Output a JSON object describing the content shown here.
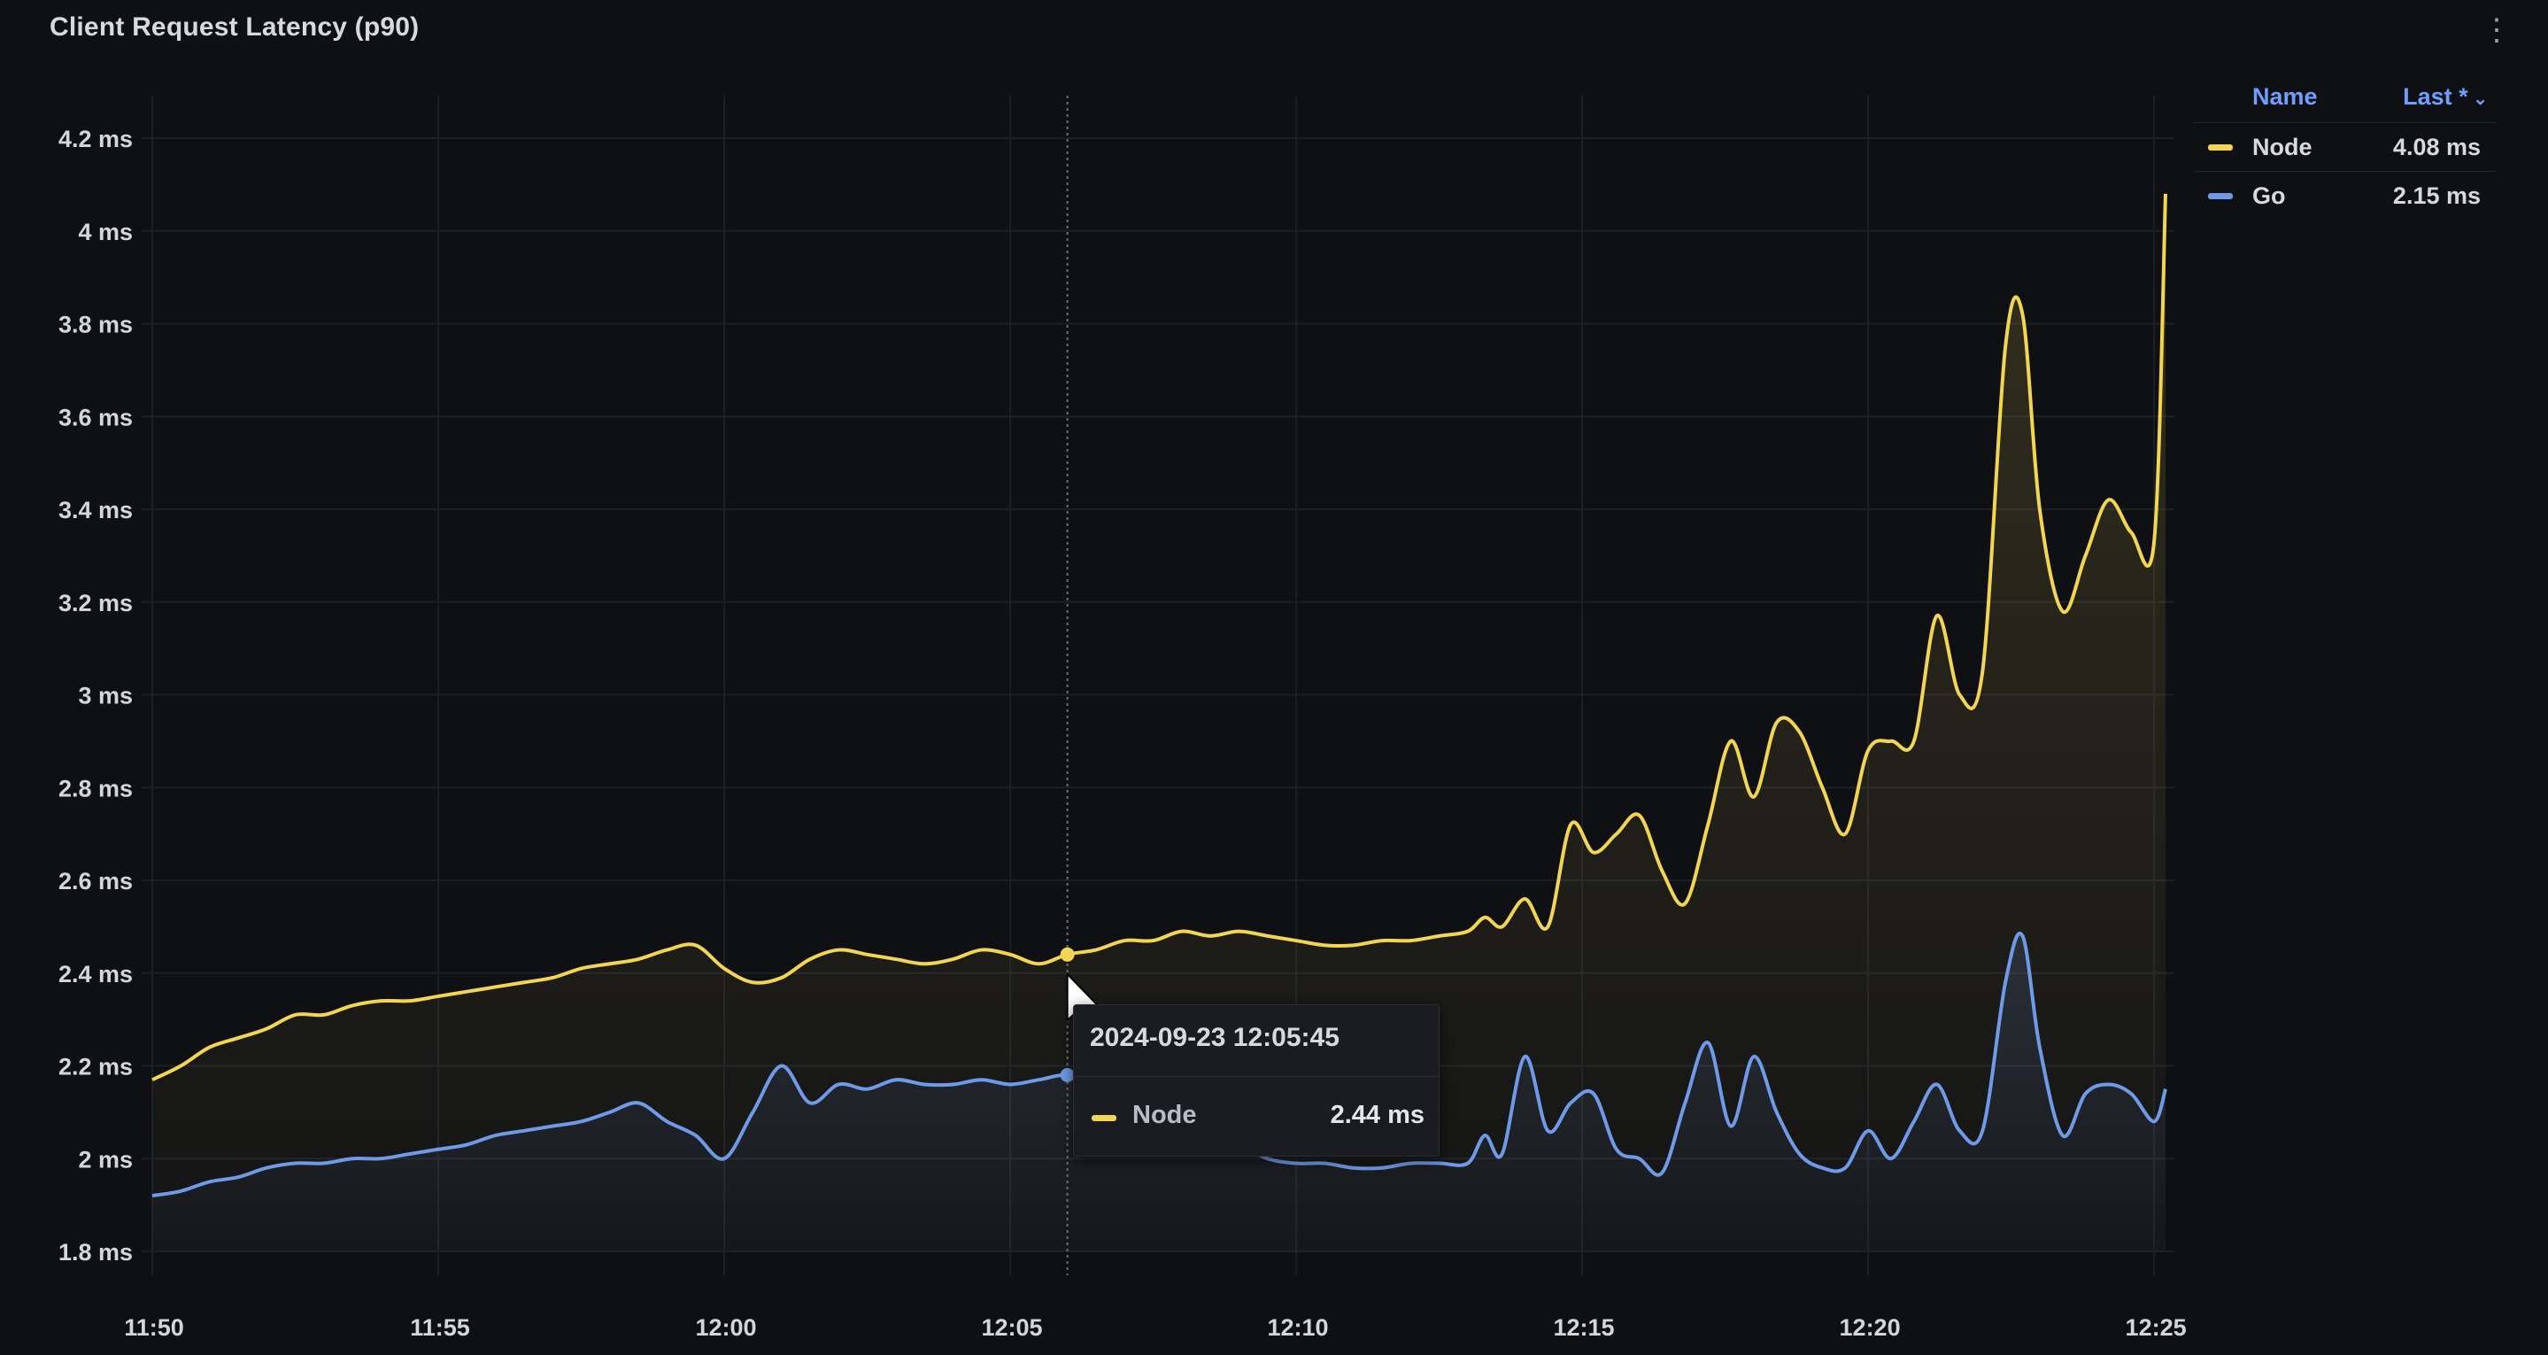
{
  "panel": {
    "title": "Client Request Latency (p90)",
    "menu_icon": "kebab-menu-icon"
  },
  "legend": {
    "name_header": "Name",
    "last_header": "Last *",
    "sort_icon": "chevron-down-icon",
    "rows": [
      {
        "name": "Node",
        "value": "4.08 ms",
        "color": "#f2d552"
      },
      {
        "name": "Go",
        "value": "2.15 ms",
        "color": "#6f9ae8"
      }
    ]
  },
  "tooltip": {
    "time": "2024-09-23 12:05:45",
    "series": "Node",
    "value": "2.44 ms",
    "color": "#f2d552"
  },
  "chart_data": {
    "type": "line",
    "title": "Client Request Latency (p90)",
    "x_ticks": [
      "11:50",
      "11:55",
      "12:00",
      "12:05",
      "12:10",
      "12:15",
      "12:20",
      "12:25"
    ],
    "y_ticks": [
      "4.2 ms",
      "4 ms",
      "3.8 ms",
      "3.6 ms",
      "3.4 ms",
      "3.2 ms",
      "3 ms",
      "2.8 ms",
      "2.6 ms",
      "2.4 ms",
      "2.2 ms",
      "2 ms",
      "1.8 ms"
    ],
    "ylim": [
      1.8,
      4.2
    ],
    "xlim": [
      0,
      35.2
    ],
    "grid": true,
    "legend_position": "top-right",
    "hover_x": 16.0,
    "series": [
      {
        "name": "Node",
        "color": "#f2d552",
        "points": [
          [
            0,
            2.17
          ],
          [
            0.5,
            2.2
          ],
          [
            1,
            2.24
          ],
          [
            1.5,
            2.26
          ],
          [
            2,
            2.28
          ],
          [
            2.5,
            2.31
          ],
          [
            3,
            2.31
          ],
          [
            3.5,
            2.33
          ],
          [
            4,
            2.34
          ],
          [
            4.5,
            2.34
          ],
          [
            5,
            2.35
          ],
          [
            5.5,
            2.36
          ],
          [
            6,
            2.37
          ],
          [
            6.5,
            2.38
          ],
          [
            7,
            2.39
          ],
          [
            7.5,
            2.41
          ],
          [
            8,
            2.42
          ],
          [
            8.5,
            2.43
          ],
          [
            9,
            2.45
          ],
          [
            9.5,
            2.46
          ],
          [
            10,
            2.41
          ],
          [
            10.5,
            2.38
          ],
          [
            11,
            2.39
          ],
          [
            11.5,
            2.43
          ],
          [
            12,
            2.45
          ],
          [
            12.5,
            2.44
          ],
          [
            13,
            2.43
          ],
          [
            13.5,
            2.42
          ],
          [
            14,
            2.43
          ],
          [
            14.5,
            2.45
          ],
          [
            15,
            2.44
          ],
          [
            15.5,
            2.42
          ],
          [
            16,
            2.44
          ],
          [
            16.5,
            2.45
          ],
          [
            17,
            2.47
          ],
          [
            17.5,
            2.47
          ],
          [
            18,
            2.49
          ],
          [
            18.5,
            2.48
          ],
          [
            19,
            2.49
          ],
          [
            19.5,
            2.48
          ],
          [
            20,
            2.47
          ],
          [
            20.5,
            2.46
          ],
          [
            21,
            2.46
          ],
          [
            21.5,
            2.47
          ],
          [
            22,
            2.47
          ],
          [
            22.5,
            2.48
          ],
          [
            23,
            2.49
          ],
          [
            23.3,
            2.52
          ],
          [
            23.6,
            2.5
          ],
          [
            24,
            2.56
          ],
          [
            24.4,
            2.5
          ],
          [
            24.8,
            2.72
          ],
          [
            25.2,
            2.66
          ],
          [
            25.6,
            2.7
          ],
          [
            26,
            2.74
          ],
          [
            26.4,
            2.62
          ],
          [
            26.8,
            2.55
          ],
          [
            27.2,
            2.72
          ],
          [
            27.6,
            2.9
          ],
          [
            28,
            2.78
          ],
          [
            28.4,
            2.94
          ],
          [
            28.8,
            2.92
          ],
          [
            29.2,
            2.8
          ],
          [
            29.6,
            2.7
          ],
          [
            30,
            2.88
          ],
          [
            30.4,
            2.9
          ],
          [
            30.8,
            2.9
          ],
          [
            31.2,
            3.17
          ],
          [
            31.6,
            3.0
          ],
          [
            32,
            3.05
          ],
          [
            32.4,
            3.75
          ],
          [
            32.7,
            3.82
          ],
          [
            33,
            3.4
          ],
          [
            33.4,
            3.18
          ],
          [
            33.8,
            3.3
          ],
          [
            34.2,
            3.42
          ],
          [
            34.6,
            3.35
          ],
          [
            35,
            3.33
          ],
          [
            35.2,
            4.08
          ]
        ]
      },
      {
        "name": "Go",
        "color": "#6f9ae8",
        "points": [
          [
            0,
            1.92
          ],
          [
            0.5,
            1.93
          ],
          [
            1,
            1.95
          ],
          [
            1.5,
            1.96
          ],
          [
            2,
            1.98
          ],
          [
            2.5,
            1.99
          ],
          [
            3,
            1.99
          ],
          [
            3.5,
            2.0
          ],
          [
            4,
            2.0
          ],
          [
            4.5,
            2.01
          ],
          [
            5,
            2.02
          ],
          [
            5.5,
            2.03
          ],
          [
            6,
            2.05
          ],
          [
            6.5,
            2.06
          ],
          [
            7,
            2.07
          ],
          [
            7.5,
            2.08
          ],
          [
            8,
            2.1
          ],
          [
            8.5,
            2.12
          ],
          [
            9,
            2.08
          ],
          [
            9.5,
            2.05
          ],
          [
            10,
            2.0
          ],
          [
            10.5,
            2.1
          ],
          [
            11,
            2.2
          ],
          [
            11.5,
            2.12
          ],
          [
            12,
            2.16
          ],
          [
            12.5,
            2.15
          ],
          [
            13,
            2.17
          ],
          [
            13.5,
            2.16
          ],
          [
            14,
            2.16
          ],
          [
            14.5,
            2.17
          ],
          [
            15,
            2.16
          ],
          [
            15.5,
            2.17
          ],
          [
            16,
            2.18
          ],
          [
            16.5,
            2.16
          ],
          [
            17,
            2.12
          ],
          [
            17.5,
            2.08
          ],
          [
            18,
            2.06
          ],
          [
            18.5,
            2.04
          ],
          [
            19,
            2.03
          ],
          [
            19.5,
            2.0
          ],
          [
            20,
            1.99
          ],
          [
            20.5,
            1.99
          ],
          [
            21,
            1.98
          ],
          [
            21.5,
            1.98
          ],
          [
            22,
            1.99
          ],
          [
            22.5,
            1.99
          ],
          [
            23,
            1.99
          ],
          [
            23.3,
            2.05
          ],
          [
            23.6,
            2.01
          ],
          [
            24,
            2.22
          ],
          [
            24.4,
            2.06
          ],
          [
            24.8,
            2.12
          ],
          [
            25.2,
            2.14
          ],
          [
            25.6,
            2.02
          ],
          [
            26,
            2.0
          ],
          [
            26.4,
            1.97
          ],
          [
            26.8,
            2.12
          ],
          [
            27.2,
            2.25
          ],
          [
            27.6,
            2.07
          ],
          [
            28,
            2.22
          ],
          [
            28.4,
            2.1
          ],
          [
            28.8,
            2.01
          ],
          [
            29.2,
            1.98
          ],
          [
            29.6,
            1.98
          ],
          [
            30,
            2.06
          ],
          [
            30.4,
            2.0
          ],
          [
            30.8,
            2.08
          ],
          [
            31.2,
            2.16
          ],
          [
            31.6,
            2.06
          ],
          [
            32,
            2.06
          ],
          [
            32.4,
            2.38
          ],
          [
            32.7,
            2.48
          ],
          [
            33,
            2.24
          ],
          [
            33.4,
            2.05
          ],
          [
            33.8,
            2.14
          ],
          [
            34.2,
            2.16
          ],
          [
            34.6,
            2.14
          ],
          [
            35,
            2.08
          ],
          [
            35.2,
            2.15
          ]
        ]
      }
    ]
  }
}
